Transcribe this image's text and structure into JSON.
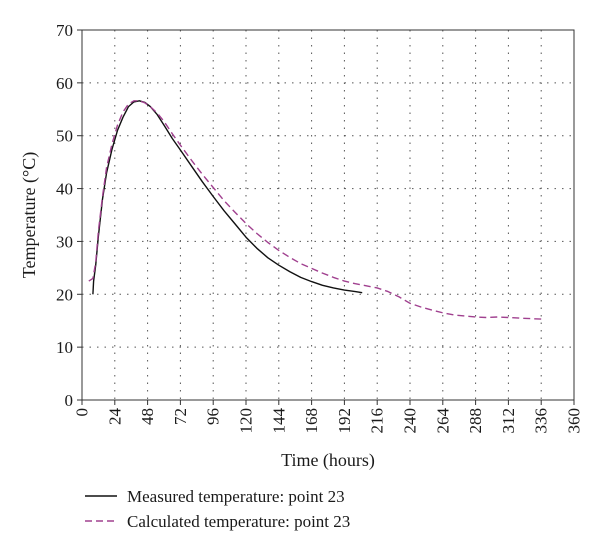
{
  "chart_data": {
    "type": "line",
    "title": "",
    "xlabel": "Time (hours)",
    "ylabel": "Temperature (°C)",
    "xlim": [
      0,
      360
    ],
    "ylim": [
      0,
      70
    ],
    "xticks": [
      0,
      24,
      48,
      72,
      96,
      120,
      144,
      168,
      192,
      216,
      240,
      264,
      288,
      312,
      336,
      360
    ],
    "yticks": [
      0,
      10,
      20,
      30,
      40,
      50,
      60,
      70
    ],
    "grid": true,
    "legend_position": "bottom-left",
    "series": [
      {
        "name": "Measured temperature: point 23",
        "style": "solid",
        "color": "#111111",
        "x": [
          8,
          8.5,
          10,
          12,
          15,
          18,
          22,
          26,
          30,
          34,
          38,
          42,
          46,
          50,
          55,
          60,
          66,
          72,
          80,
          88,
          96,
          104,
          112,
          120,
          128,
          136,
          144,
          152,
          160,
          168,
          176,
          184,
          192,
          200,
          205
        ],
        "y": [
          20.0,
          22.5,
          25.5,
          31.0,
          38.0,
          43.0,
          47.5,
          51.0,
          53.5,
          55.5,
          56.4,
          56.6,
          56.3,
          55.5,
          54.0,
          52.0,
          49.5,
          47.3,
          44.3,
          41.3,
          38.5,
          35.8,
          33.3,
          30.8,
          28.7,
          26.9,
          25.5,
          24.3,
          23.2,
          22.4,
          21.7,
          21.2,
          20.8,
          20.5,
          20.3
        ]
      },
      {
        "name": "Calculated temperature: point 23",
        "style": "dashed",
        "color": "#a0408f",
        "x": [
          5,
          8,
          10,
          12,
          15,
          18,
          22,
          26,
          30,
          34,
          38,
          42,
          46,
          50,
          55,
          60,
          66,
          72,
          80,
          88,
          96,
          104,
          112,
          120,
          128,
          136,
          144,
          152,
          160,
          168,
          176,
          184,
          192,
          200,
          208,
          216,
          224,
          232,
          240,
          248,
          256,
          264,
          272,
          280,
          288,
          296,
          304,
          312,
          320,
          328,
          336
        ],
        "y": [
          22.5,
          23.0,
          26.0,
          32.0,
          38.5,
          44.0,
          48.5,
          52.0,
          54.5,
          56.0,
          56.6,
          56.6,
          56.2,
          55.5,
          54.3,
          52.7,
          50.4,
          48.2,
          45.4,
          42.7,
          40.2,
          37.7,
          35.5,
          33.4,
          31.5,
          29.8,
          28.3,
          27.0,
          25.8,
          24.9,
          24.0,
          23.2,
          22.5,
          22.0,
          21.6,
          21.2,
          20.5,
          19.5,
          18.3,
          17.6,
          17.0,
          16.5,
          16.1,
          15.9,
          15.7,
          15.6,
          15.7,
          15.6,
          15.5,
          15.4,
          15.3
        ]
      }
    ]
  }
}
